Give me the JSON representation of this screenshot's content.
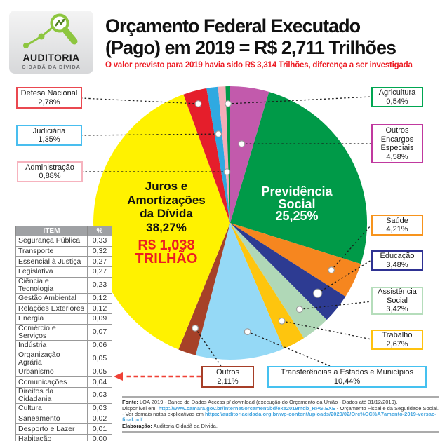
{
  "logo": {
    "line1": "AUDITORIA",
    "line2": "CIDADÃ DA DÍVIDA"
  },
  "header": {
    "title_line1": "Orçamento Federal Executado",
    "title_line2": "(Pago) em 2019 = R$ 2,711 Trilhões",
    "subtitle": "O valor previsto para 2019 havia sido R$ 3,314 Trilhões, diferença a ser investigada"
  },
  "chart_data": {
    "type": "pie",
    "title": "Orçamento Federal Executado (Pago) em 2019 = R$ 2,711 Trilhões",
    "order": "clockwise from 12 o'clock",
    "slices": [
      {
        "label": "Outros Encargos Especiais",
        "value": 4.58,
        "display": "4,58%",
        "color": "#C25AAC"
      },
      {
        "label": "Previdência Social",
        "value": 25.25,
        "display": "25,25%",
        "color": "#009A48"
      },
      {
        "label": "Saúde",
        "value": 4.21,
        "display": "4,21%",
        "color": "#F6861F"
      },
      {
        "label": "Educação",
        "value": 3.48,
        "display": "3,48%",
        "color": "#2D3B92"
      },
      {
        "label": "Assistência Social",
        "value": 3.42,
        "display": "3,42%",
        "color": "#B0D8B7"
      },
      {
        "label": "Trabalho",
        "value": 2.67,
        "display": "2,67%",
        "color": "#FEC50E"
      },
      {
        "label": "Transferências a Estados e Municípios",
        "value": 10.44,
        "display": "10,44%",
        "color": "#95D9F6"
      },
      {
        "label": "Outros",
        "value": 2.11,
        "display": "2,11%",
        "color": "#A64128"
      },
      {
        "label": "Juros e Amortizações da Dívida",
        "value": 38.27,
        "display": "38,27%",
        "color": "#FFF200"
      },
      {
        "label": "Defesa Nacional",
        "value": 2.78,
        "display": "2,78%",
        "color": "#E51E2B"
      },
      {
        "label": "Judiciária",
        "value": 1.35,
        "display": "1,35%",
        "color": "#2FA9E1"
      },
      {
        "label": "Administração",
        "value": 0.88,
        "display": "0,88%",
        "color": "#F4ADB8"
      },
      {
        "label": "Agricultura",
        "value": 0.54,
        "display": "0,54%",
        "color": "#009A48"
      }
    ],
    "inside_labels": {
      "juros": {
        "l1": "Juros e",
        "l2": "Amortizações",
        "l3": "da Dívida",
        "l4": "38,27%",
        "a1": "R$ 1,038",
        "a2": "TRILHÃO"
      },
      "previdencia": {
        "l1": "Previdência",
        "l2": "Social",
        "l3": "25,25%"
      }
    },
    "others_breakdown": {
      "headers": [
        "ITEM",
        "%"
      ],
      "rows": [
        [
          "Segurança Pública",
          "0,33"
        ],
        [
          "Transporte",
          "0,32"
        ],
        [
          "Essencial à Justiça",
          "0,27"
        ],
        [
          "Legislativa",
          "0,27"
        ],
        [
          "Ciência e Tecnologia",
          "0,23"
        ],
        [
          "Gestão Ambiental",
          "0,12"
        ],
        [
          "Relações Exteriores",
          "0,12"
        ],
        [
          "Energia",
          "0,09"
        ],
        [
          "Comércio e Serviços",
          "0,07"
        ],
        [
          "Indústria",
          "0,06"
        ],
        [
          "Organização Agrária",
          "0,05"
        ],
        [
          "Urbanismo",
          "0,05"
        ],
        [
          "Comunicações",
          "0,04"
        ],
        [
          "Direitos da Cidadania",
          "0,03"
        ],
        [
          "Cultura",
          "0,03"
        ],
        [
          "Saneamento",
          "0,02"
        ],
        [
          "Desporto e Lazer",
          "0,01"
        ],
        [
          "Habitação",
          "0,00"
        ]
      ]
    }
  },
  "callouts": {
    "defesa": {
      "name": "Defesa Nacional",
      "pct": "2,78%",
      "color": "#EA4850"
    },
    "judiciaria": {
      "name": "Judiciária",
      "pct": "1,35%",
      "color": "#49BEEF"
    },
    "administracao": {
      "name": "Administração",
      "pct": "0,88%",
      "color": "#F6B3BE"
    },
    "agricultura": {
      "name": "Agricultura",
      "pct": "0,54%",
      "color": "#00A651"
    },
    "outros_encargos": {
      "name": "Outros Encargos Especiais",
      "pct": "4,58%",
      "color": "#C0399F"
    },
    "saude": {
      "name": "Saúde",
      "pct": "4,21%",
      "color": "#F7941D"
    },
    "educacao": {
      "name": "Educação",
      "pct": "3,48%",
      "color": "#2E3192"
    },
    "assistencia": {
      "name": "Assistência Social",
      "pct": "3,42%",
      "color": "#B5DDBB"
    },
    "trabalho": {
      "name": "Trabalho",
      "pct": "2,67%",
      "color": "#FFC20E"
    },
    "transferencias": {
      "name": "Transferências a Estados e Municípios",
      "pct": "10,44%",
      "color": "#45C1F0"
    },
    "outros": {
      "name": "Outros",
      "pct": "2,11%",
      "color": "#A63E28"
    }
  },
  "footer": {
    "line1_bold": "Fonte:",
    "line1_rest": " LOA 2019 - Banco de Dados Access p/ download (execução do Orçamento da União - Dados até 31/12/2019).",
    "line2_prefix": "Disponível em: ",
    "line2_link": "http://www.camara.gov.br/internet/orcament/bd/exe2019mdb_RPG.EXE",
    "line2_suffix": " - Orçamento Fiscal e da Seguridade Social.",
    "line3_prefix": "- Ver demais notas explicativas em ",
    "line3_link": "https://auditoriacidada.org.br/wp-content/uploads/2020/02/Orc%CC%A7amento-2019-versao-final.pdf",
    "line4_bold": "Elaboração:",
    "line4_rest": " Auditoria Cidadã da Dívida."
  }
}
